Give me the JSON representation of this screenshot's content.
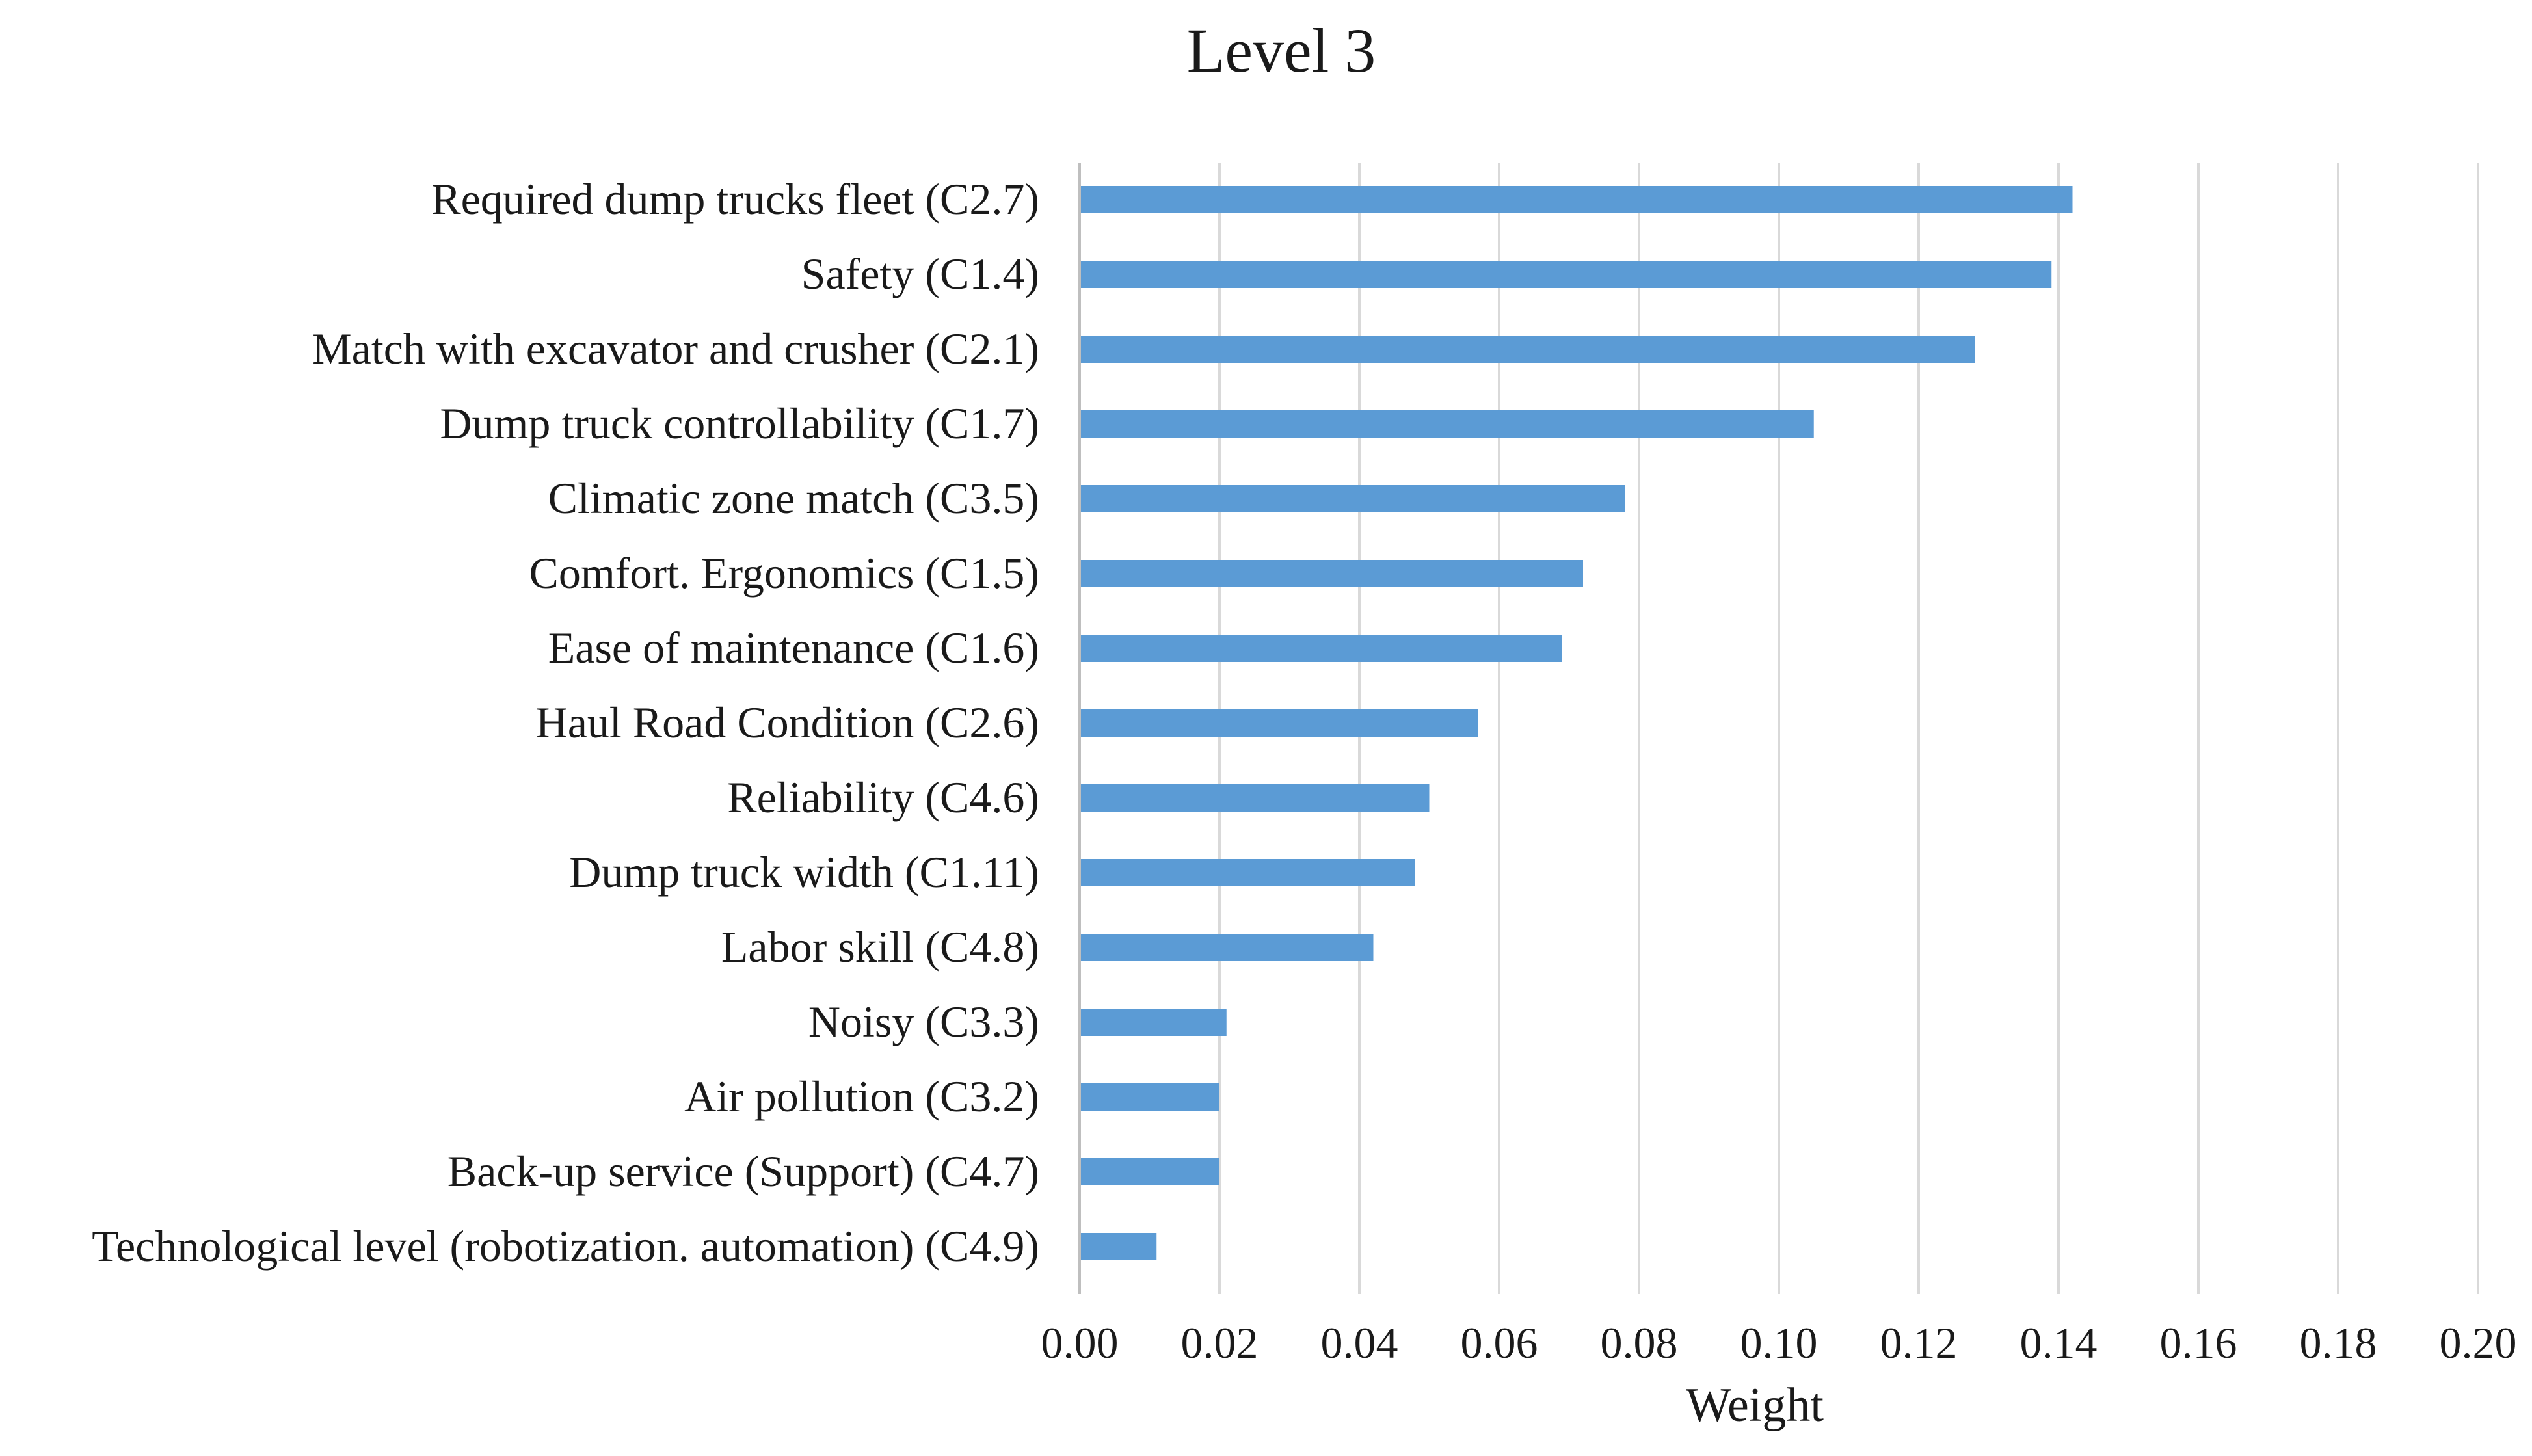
{
  "chart_data": {
    "type": "bar",
    "orientation": "horizontal",
    "title": "Level 3",
    "xlabel": "Weight",
    "ylabel": "",
    "xlim": [
      0,
      0.2
    ],
    "xticks": [
      "0.00",
      "0.02",
      "0.04",
      "0.06",
      "0.08",
      "0.10",
      "0.12",
      "0.14",
      "0.16",
      "0.18",
      "0.20"
    ],
    "xtick_values": [
      0,
      0.02,
      0.04,
      0.06,
      0.08,
      0.1,
      0.12,
      0.14,
      0.16,
      0.18,
      0.2
    ],
    "grid": true,
    "legend": "none",
    "bar_color": "#5b9bd5",
    "categories": [
      "Required dump trucks fleet (C2.7)",
      "Safety (C1.4)",
      "Match with excavator and crusher (C2.1)",
      "Dump truck controllability (C1.7)",
      "Climatic zone match (C3.5)",
      "Comfort. Ergonomics (C1.5)",
      "Ease of maintenance (C1.6)",
      "Haul Road Condition (C2.6)",
      "Reliability (C4.6)",
      "Dump truck width (C1.11)",
      "Labor skill (C4.8)",
      "Noisy (C3.3)",
      "Air pollution (C3.2)",
      "Back-up service (Support) (C4.7)",
      "Technological level (robotization. automation) (C4.9)"
    ],
    "values": [
      0.142,
      0.139,
      0.128,
      0.105,
      0.078,
      0.072,
      0.069,
      0.057,
      0.05,
      0.048,
      0.042,
      0.021,
      0.02,
      0.02,
      0.011
    ]
  }
}
